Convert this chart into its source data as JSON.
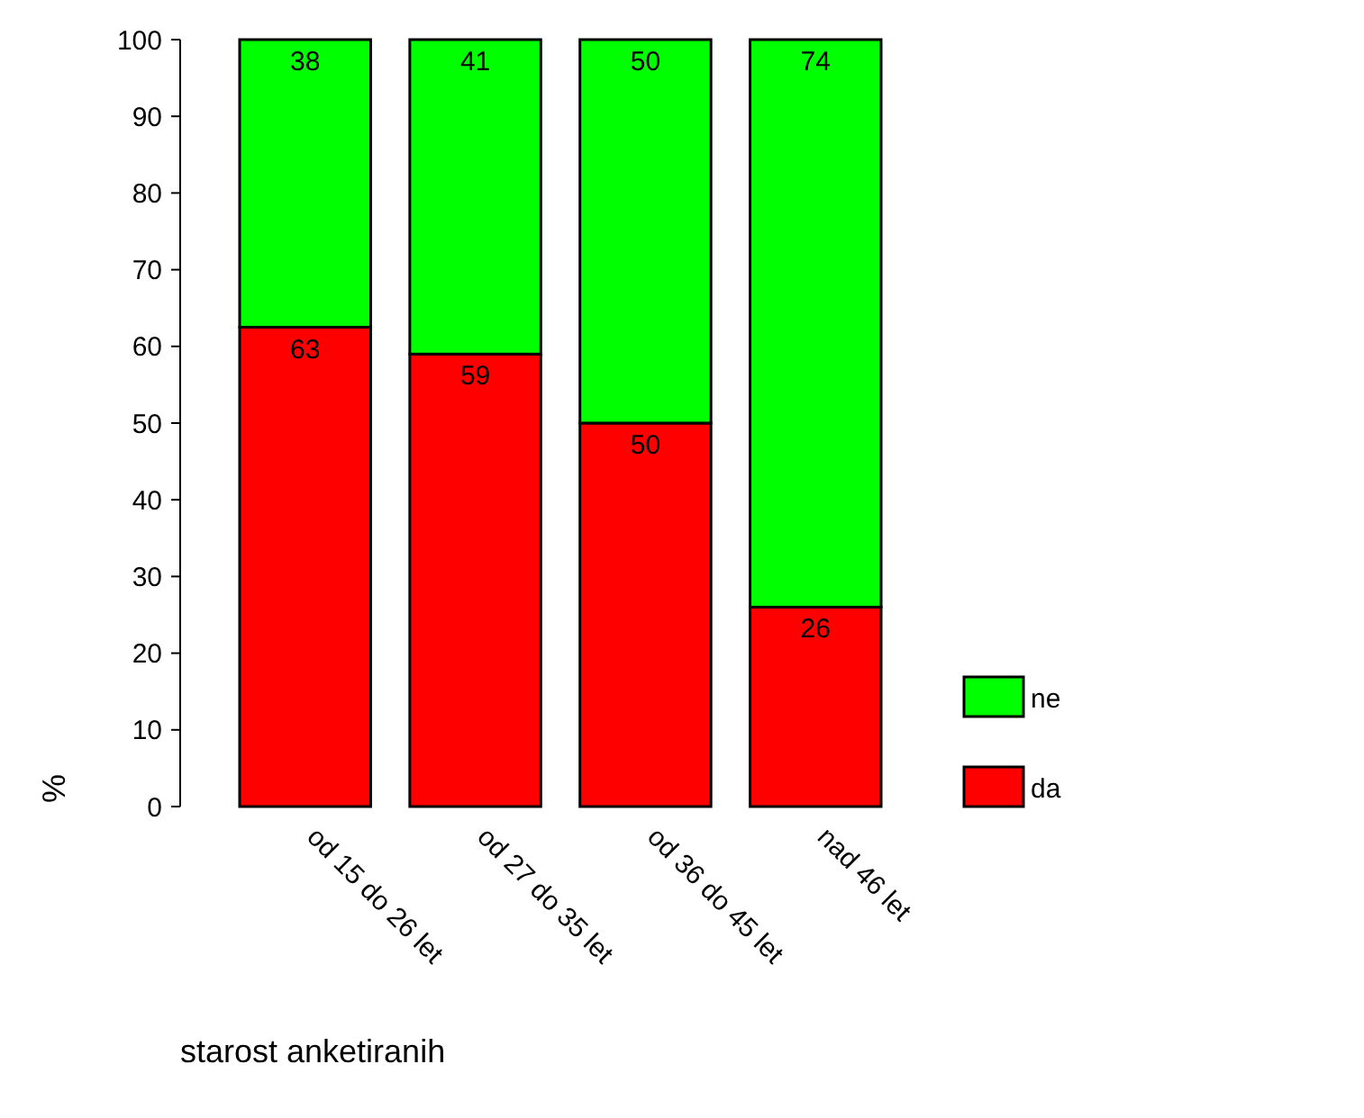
{
  "chart_data": {
    "type": "bar",
    "stacked": true,
    "categories": [
      "od 15 do 26 let",
      "od 27 do 35 let",
      "od 36 do 45 let",
      "nad 46 let"
    ],
    "series": [
      {
        "name": "da",
        "color": "#ff0000",
        "values": [
          62.5,
          59,
          50,
          26
        ],
        "value_labels": [
          "63",
          "59",
          "50",
          "26"
        ]
      },
      {
        "name": "ne",
        "color": "#00ff00",
        "values": [
          37.5,
          41,
          50,
          74
        ],
        "value_labels": [
          "38",
          "41",
          "50",
          "74"
        ]
      }
    ],
    "xlabel": "starost anketiranih",
    "ylabel": "%",
    "ylim": [
      0,
      100
    ],
    "yticks": [
      0,
      10,
      20,
      30,
      40,
      50,
      60,
      70,
      80,
      90,
      100
    ],
    "grid": false,
    "legend": "right"
  }
}
